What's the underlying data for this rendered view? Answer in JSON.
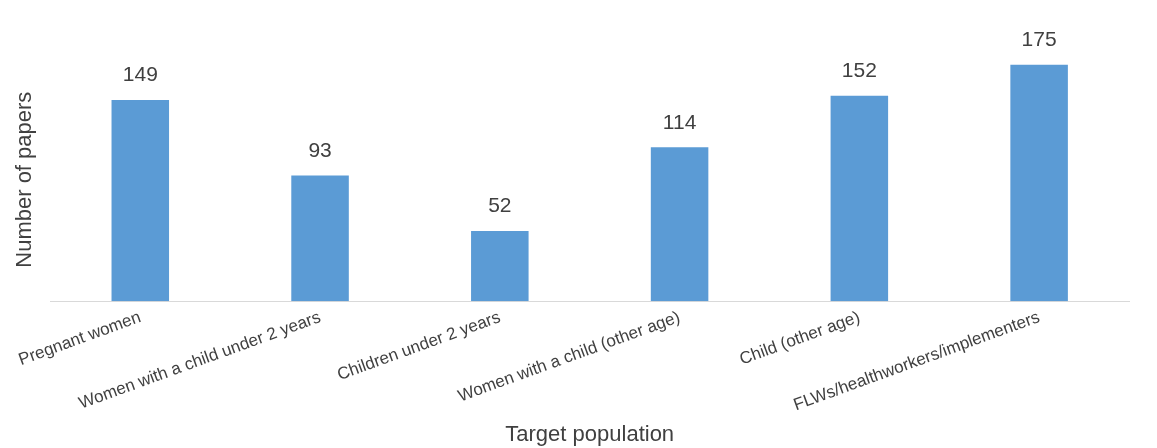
{
  "chart_data": {
    "type": "bar",
    "xlabel": "Target population",
    "ylabel": "Number of papers",
    "categories": [
      "Pregnant women",
      "Women with a child under 2 years",
      "Children under 2 years",
      "Women with a child (other age)",
      "Child (other age)",
      "FLWs/healthworkers/implementers"
    ],
    "values": [
      149,
      93,
      52,
      114,
      152,
      175
    ],
    "color": "#5b9bd5",
    "data_labels": true,
    "grid": false,
    "legend": false,
    "tick_labels": "x"
  }
}
